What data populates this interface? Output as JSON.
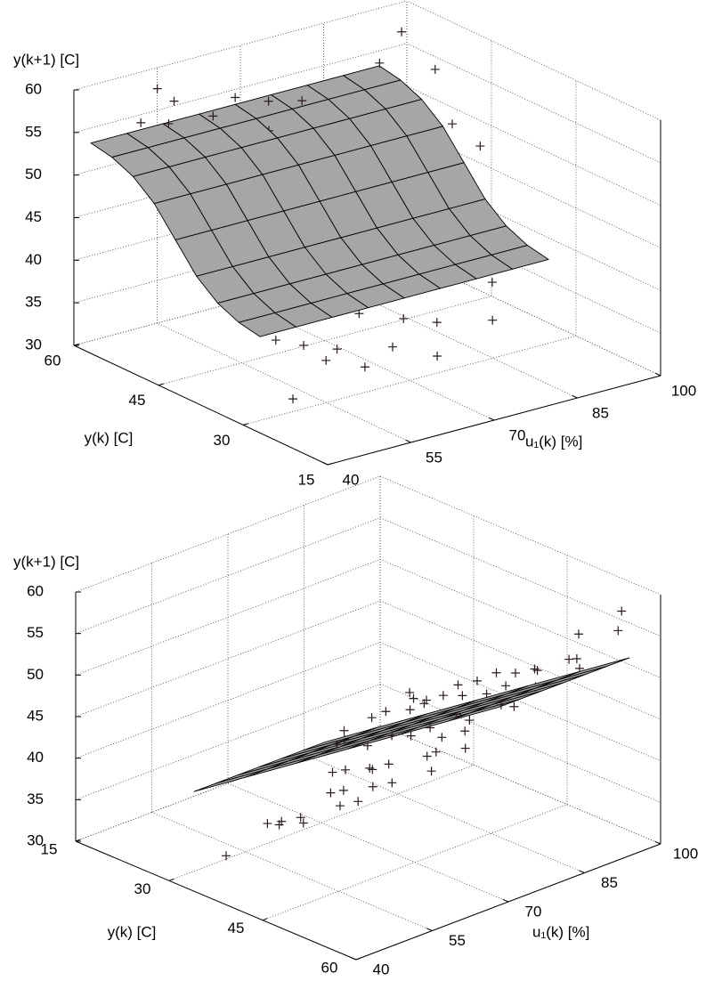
{
  "chart_data": [
    {
      "type": "surface",
      "xlabel": "u₁(k)  [%]",
      "ylabel": "y(k) [C]",
      "zlabel": "y(k+1) [C]",
      "xlim": [
        40,
        100
      ],
      "ylim": [
        15,
        60
      ],
      "zlim": [
        30,
        60
      ],
      "xticks": [
        40,
        55,
        70,
        85,
        100
      ],
      "yticks": [
        15,
        30,
        45,
        60
      ],
      "zticks": [
        30,
        35,
        40,
        45,
        50,
        55,
        60
      ],
      "grid": true,
      "surface": {
        "color": "#a6a6a6",
        "edgecolor": "#000000",
        "x": [
          40,
          46.5,
          53,
          59.5,
          66,
          72.5,
          79,
          85.5,
          92
        ],
        "y": [
          27,
          30.75,
          34.5,
          38.25,
          42,
          45.75,
          49.5,
          53.25,
          57
        ],
        "z": [
          [
            41.3,
            41.3,
            41.3,
            41.3,
            41.3,
            41.3,
            41.3,
            41.3,
            41.3
          ],
          [
            41.8,
            41.8,
            41.8,
            41.8,
            41.8,
            41.8,
            41.8,
            41.8,
            41.8
          ],
          [
            42.9,
            42.9,
            42.9,
            42.9,
            42.9,
            42.9,
            42.9,
            42.9,
            42.9
          ],
          [
            44.9,
            44.9,
            44.9,
            44.9,
            44.9,
            44.9,
            44.9,
            44.9,
            44.9
          ],
          [
            48,
            48,
            48,
            48,
            48,
            48,
            48,
            48,
            48
          ],
          [
            51.1,
            51.1,
            51.1,
            51.1,
            51.1,
            51.1,
            51.1,
            51.1,
            51.1
          ],
          [
            53.1,
            53.1,
            53.1,
            53.1,
            53.1,
            53.1,
            53.1,
            53.1,
            53.1
          ],
          [
            54.2,
            54.2,
            54.2,
            54.2,
            54.2,
            54.2,
            54.2,
            54.2,
            54.2
          ],
          [
            54.7,
            54.7,
            54.7,
            54.7,
            54.7,
            54.7,
            54.7,
            54.7,
            54.7
          ]
        ]
      },
      "points": {
        "marker": "+",
        "color": "#2a1a1a",
        "x": [
          48,
          52,
          55,
          58,
          60,
          62,
          65,
          67,
          70,
          72,
          75,
          78,
          80,
          83,
          85,
          88,
          90,
          93,
          96,
          99,
          46,
          50,
          57,
          63,
          68,
          73,
          77,
          82,
          87,
          92,
          55,
          60,
          66,
          71,
          79,
          86,
          95,
          100,
          52,
          56,
          58,
          61,
          64,
          67,
          70,
          74,
          76,
          79,
          84,
          88,
          91,
          50,
          62,
          69,
          81,
          97,
          45,
          53
        ],
        "y": [
          56,
          55,
          57,
          54,
          55,
          53,
          56,
          52,
          55,
          51,
          54,
          50,
          53,
          49,
          52,
          50,
          55,
          51,
          57,
          54,
          52,
          50,
          48,
          47,
          46,
          45,
          46,
          44,
          45,
          43,
          44,
          42,
          41,
          40,
          42,
          40,
          44,
          47,
          36,
          35,
          33,
          34,
          32,
          36,
          33,
          35,
          31,
          34,
          37,
          33,
          36,
          31,
          38,
          39,
          38,
          49,
          54,
          58
        ],
        "z": [
          56,
          55.5,
          57,
          54,
          55,
          53.5,
          56,
          53,
          55,
          51.5,
          54.5,
          50,
          53,
          49.5,
          52,
          50.5,
          56,
          51,
          58,
          54,
          52,
          51,
          48,
          47.5,
          46,
          45.5,
          46.5,
          44,
          45,
          43,
          44,
          42.5,
          41,
          40,
          42,
          40.5,
          45,
          47,
          36,
          35,
          33.5,
          34,
          32,
          36.5,
          33,
          35,
          31.5,
          34,
          37.5,
          33,
          36,
          31,
          38,
          39.5,
          38,
          49.5,
          54.5,
          58.5
        ]
      }
    },
    {
      "type": "surface",
      "xlabel": "u₁(k) [%]",
      "ylabel": "y(k) [C]",
      "zlabel": "y(k+1) [C]",
      "xlim": [
        40,
        100
      ],
      "ylim": [
        15,
        60
      ],
      "zlim": [
        30,
        60
      ],
      "xticks": [
        40,
        55,
        70,
        85,
        100
      ],
      "yticks": [
        15,
        30,
        45,
        60
      ],
      "zticks": [
        30,
        35,
        40,
        45,
        50,
        55,
        60
      ],
      "grid": true,
      "surface": {
        "color": "#a6a6a6",
        "edgecolor": "#000000",
        "x": [
          40,
          50,
          60,
          70,
          80,
          90,
          100
        ],
        "y": [
          34,
          37.5,
          41,
          44.5,
          48,
          51.5,
          55
        ],
        "z": [
          [
            42,
            41.37,
            40.74,
            40.11,
            39.48,
            38.85,
            38.22
          ],
          [
            44.1,
            43.47,
            42.84,
            42.21,
            41.58,
            40.95,
            40.32
          ],
          [
            46.2,
            45.57,
            44.94,
            44.31,
            43.68,
            43.05,
            42.42
          ],
          [
            48.3,
            47.67,
            47.04,
            46.41,
            45.78,
            45.15,
            44.52
          ],
          [
            50.4,
            49.77,
            49.14,
            48.51,
            47.88,
            47.25,
            46.62
          ],
          [
            52.5,
            51.87,
            51.24,
            50.61,
            49.98,
            49.35,
            48.72
          ],
          [
            54.6,
            53.97,
            53.34,
            52.71,
            52.08,
            51.45,
            50.82
          ]
        ]
      },
      "points": {
        "marker": "+",
        "color": "#2a1a1a",
        "x": [
          48,
          52,
          55,
          58,
          60,
          62,
          65,
          67,
          70,
          72,
          75,
          78,
          80,
          83,
          85,
          88,
          90,
          93,
          96,
          99,
          46,
          50,
          57,
          63,
          68,
          73,
          77,
          82,
          87,
          92,
          55,
          60,
          66,
          71,
          79,
          86,
          95,
          100,
          52,
          56,
          58,
          61,
          64,
          67,
          70,
          74,
          76,
          79,
          84,
          88,
          91,
          50,
          62,
          69,
          81,
          97,
          45,
          53
        ],
        "y": [
          56,
          55,
          57,
          54,
          55,
          53,
          56,
          52,
          55,
          51,
          54,
          50,
          53,
          49,
          52,
          50,
          55,
          51,
          57,
          54,
          52,
          50,
          48,
          47,
          46,
          45,
          46,
          44,
          45,
          43,
          44,
          42,
          41,
          40,
          42,
          40,
          44,
          47,
          36,
          35,
          33,
          34,
          32,
          36,
          33,
          35,
          31,
          34,
          37,
          33,
          36,
          31,
          38,
          39,
          38,
          49,
          54,
          58
        ],
        "z": [
          56,
          55.5,
          57,
          54,
          55,
          53.5,
          56,
          53,
          55,
          51.5,
          54.5,
          50,
          53,
          49.5,
          52,
          50.5,
          56,
          51,
          58,
          54,
          52,
          51,
          48,
          47.5,
          46,
          45.5,
          46.5,
          44,
          45,
          43,
          44,
          42.5,
          41,
          40,
          42,
          40.5,
          45,
          47,
          36,
          35,
          33.5,
          34,
          32,
          36.5,
          33,
          35,
          31.5,
          34,
          37.5,
          33,
          36,
          31,
          38,
          39.5,
          38,
          49.5,
          54.5,
          58.5
        ]
      }
    }
  ]
}
